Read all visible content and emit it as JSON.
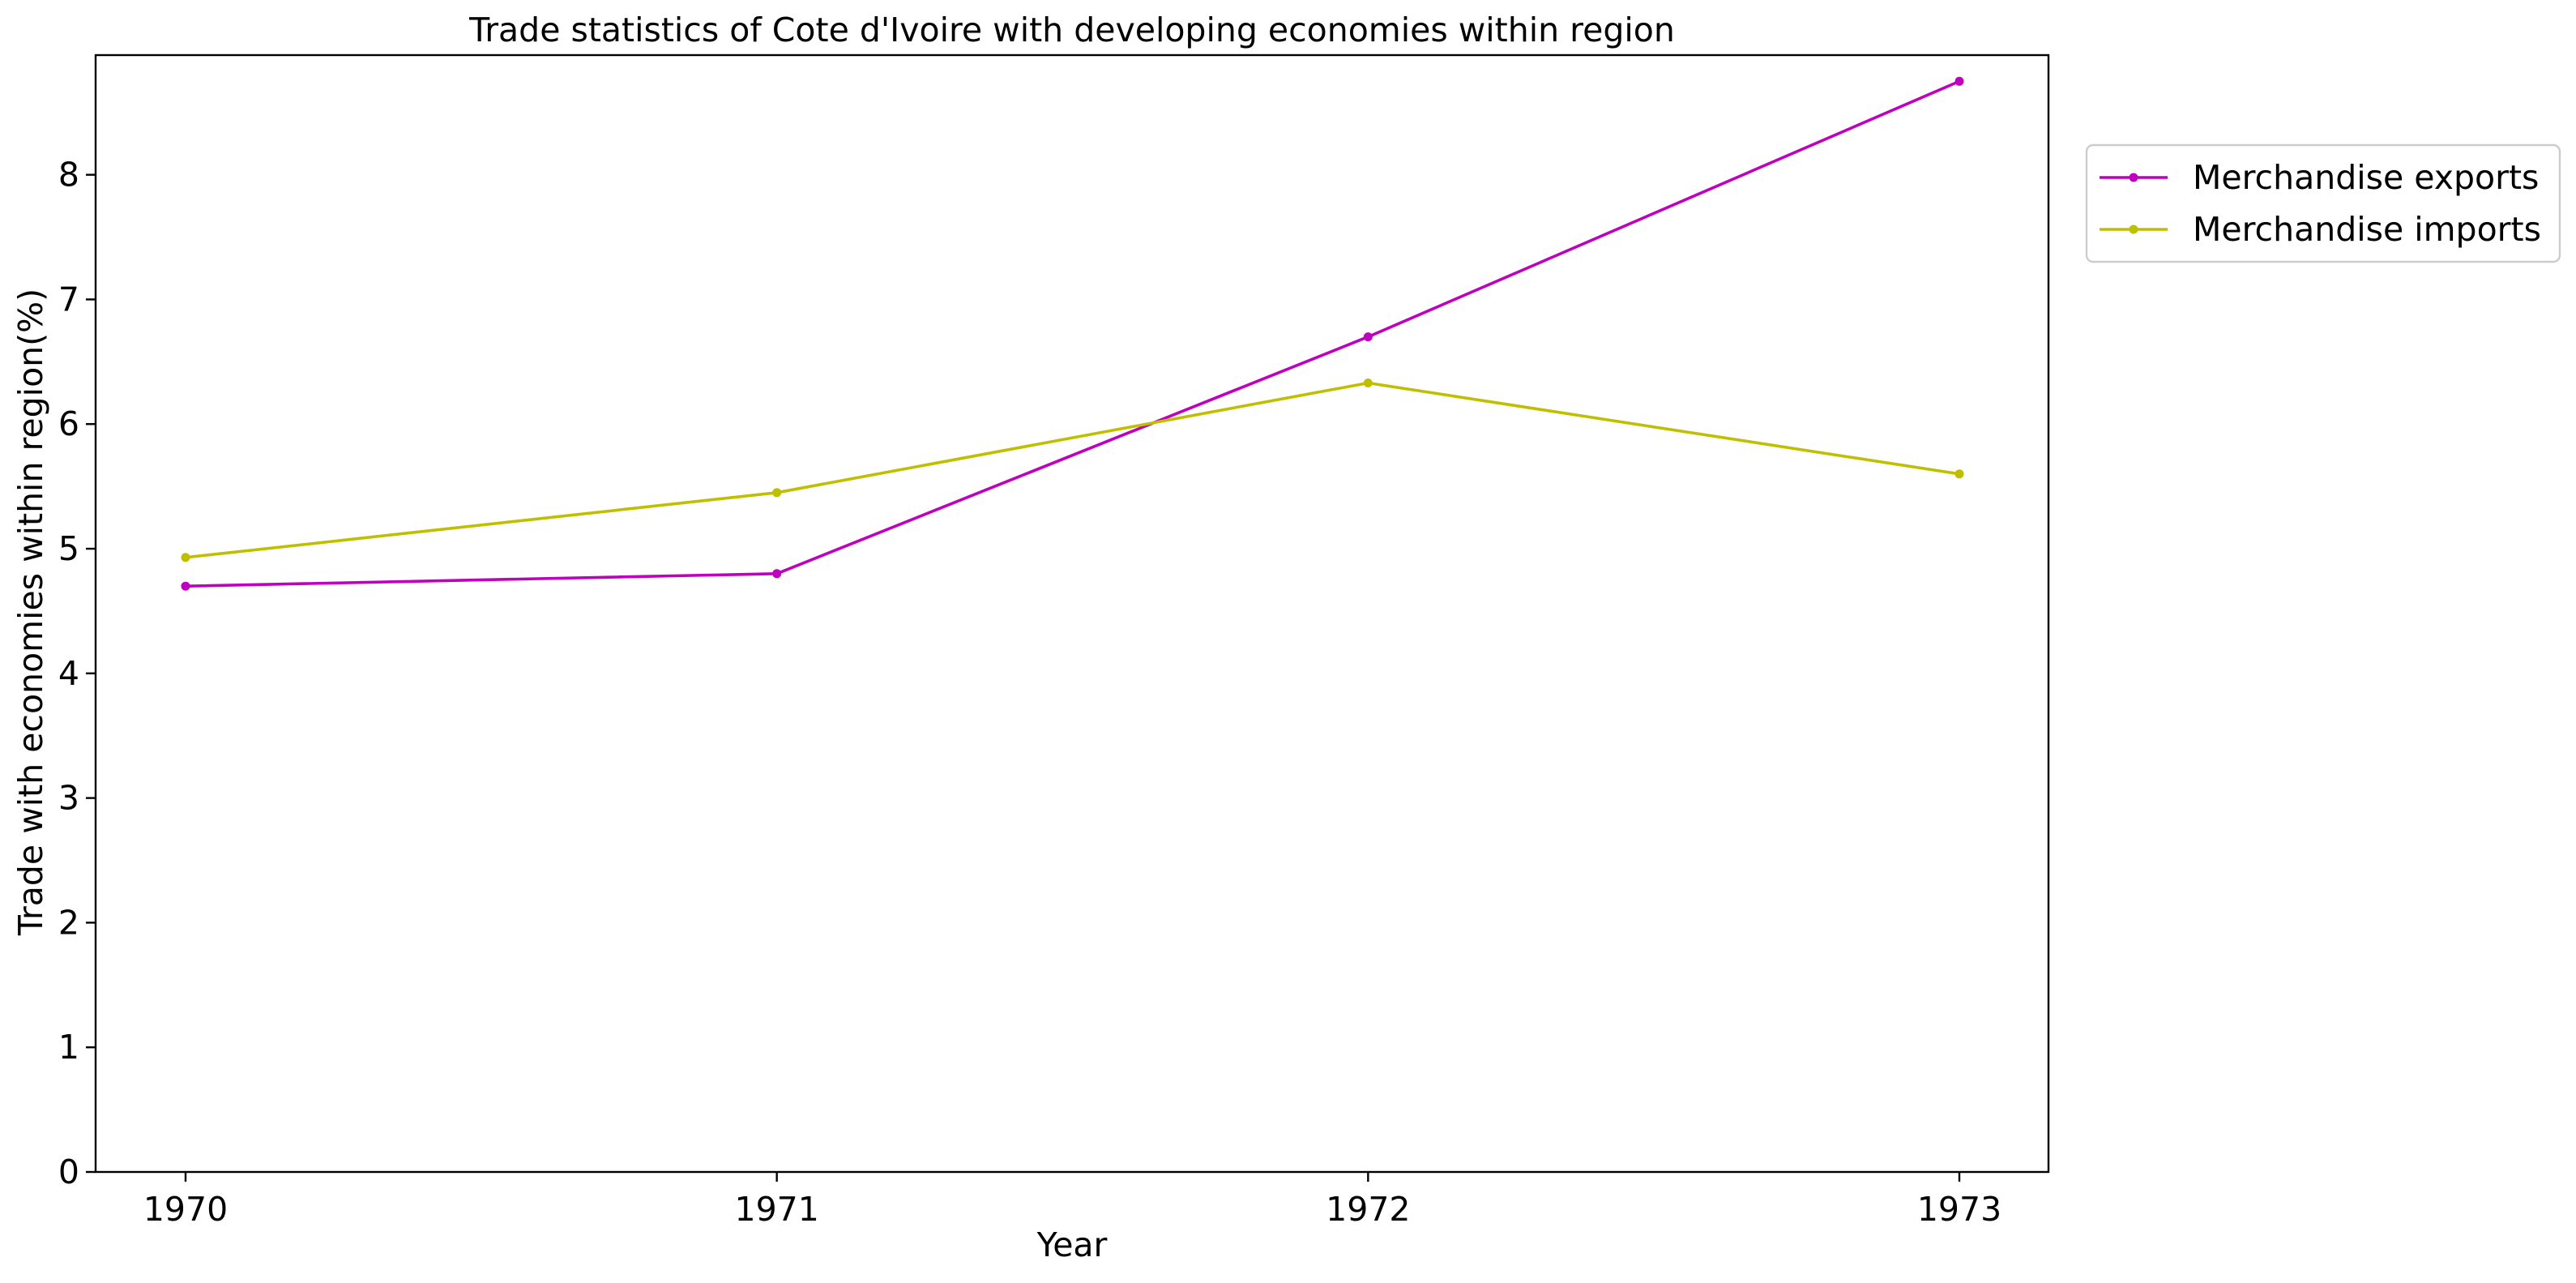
{
  "chart_data": {
    "type": "line",
    "title": "Trade statistics of Cote d'Ivoire with developing economies within region",
    "xlabel": "Year",
    "ylabel": "Trade with economies within region(%)",
    "x": [
      "1970",
      "1971",
      "1972",
      "1973"
    ],
    "x_tick_labels": [
      "1970",
      "1971",
      "1972",
      "1973"
    ],
    "y_tick_labels": [
      "0",
      "1",
      "2",
      "3",
      "4",
      "5",
      "6",
      "7",
      "8"
    ],
    "ylim": [
      0,
      8.96
    ],
    "grid": false,
    "legend_position": "outside-top-right",
    "series": [
      {
        "name": "Merchandise exports",
        "color": "#bf00bf",
        "marker": "circle",
        "values": [
          4.7,
          4.8,
          6.7,
          8.75
        ]
      },
      {
        "name": "Merchandise imports",
        "color": "#bfbf00",
        "marker": "circle",
        "values": [
          4.93,
          5.45,
          6.33,
          5.6
        ]
      }
    ]
  }
}
